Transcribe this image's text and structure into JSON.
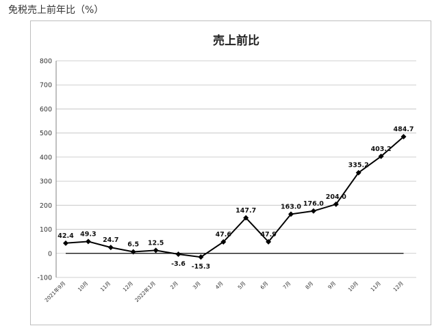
{
  "page": {
    "heading": "免税売上前年比（%）"
  },
  "chart_data": {
    "type": "line",
    "title": "売上前比",
    "xlabel": "",
    "ylabel": "",
    "ylim": [
      -100,
      800
    ],
    "yticks": [
      -100,
      0,
      100,
      200,
      300,
      400,
      500,
      600,
      700,
      800
    ],
    "grid": true,
    "categories": [
      "2021年9月",
      "10月",
      "11月",
      "12月",
      "2022年1月",
      "2月",
      "3月",
      "4月",
      "5月",
      "6月",
      "7月",
      "8月",
      "9月",
      "10月",
      "11月",
      "12月"
    ],
    "series": [
      {
        "values": [
          42.4,
          49.3,
          24.7,
          6.5,
          12.5,
          -3.6,
          -15.3,
          47.6,
          147.7,
          47.9,
          163.0,
          176.0,
          204.0,
          335.2,
          403.2,
          484.7
        ]
      }
    ],
    "data_labels": [
      "42.4",
      "49.3",
      "24.7",
      "6.5",
      "12.5",
      "-3.6",
      "-15.3",
      "47.6",
      "147.7",
      "47.9",
      "163.0",
      "176.0",
      "204.0",
      "335.2",
      "403.2",
      "484.7"
    ]
  }
}
